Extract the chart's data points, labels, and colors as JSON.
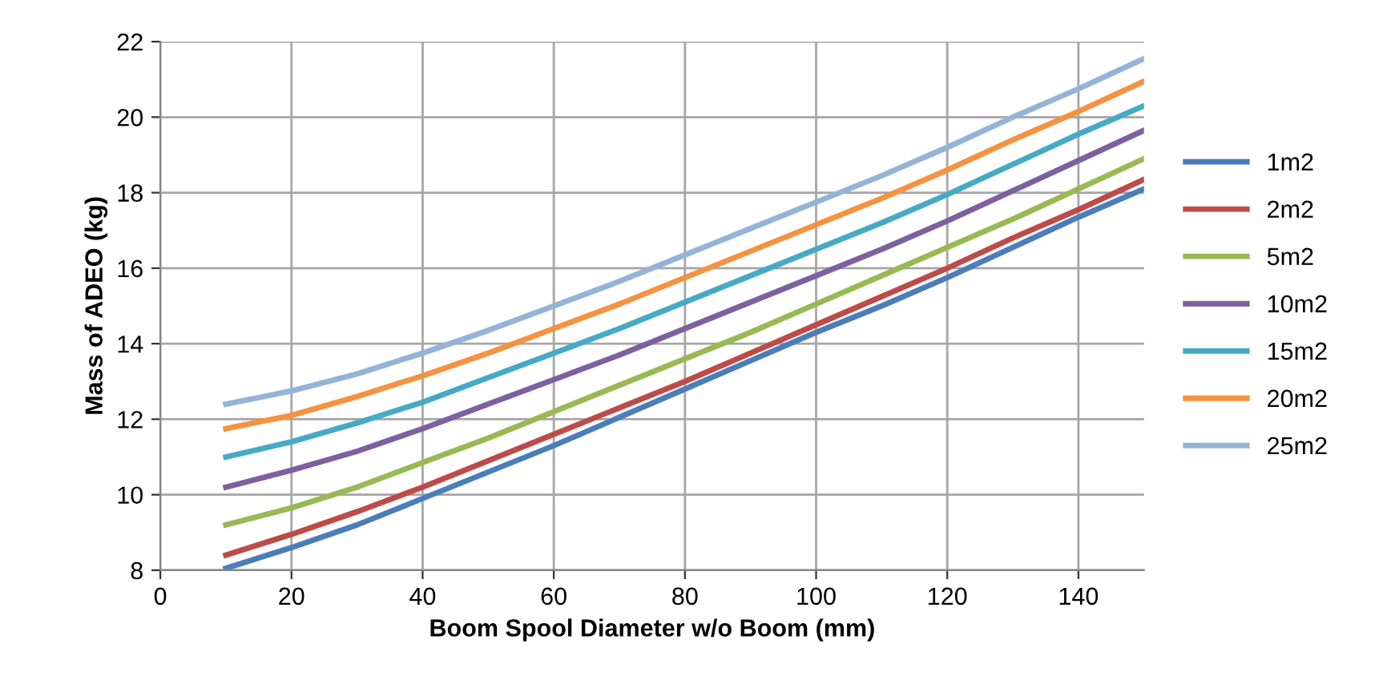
{
  "chart_data": {
    "type": "line",
    "xlabel": "Boom Spool Diameter w/o Boom (mm)",
    "ylabel": "Mass of ADEO (kg)",
    "x": [
      10,
      20,
      30,
      40,
      50,
      60,
      70,
      80,
      90,
      100,
      110,
      120,
      130,
      140,
      150
    ],
    "series": [
      {
        "name": "1m2",
        "color": "#4a7ebb",
        "values": [
          8.05,
          8.6,
          9.2,
          9.9,
          10.6,
          11.3,
          12.05,
          12.8,
          13.55,
          14.3,
          15.0,
          15.75,
          16.55,
          17.35,
          18.1
        ]
      },
      {
        "name": "2m2",
        "color": "#be4b48",
        "values": [
          8.4,
          8.95,
          9.55,
          10.2,
          10.9,
          11.6,
          12.3,
          13.0,
          13.75,
          14.5,
          15.25,
          16.0,
          16.8,
          17.55,
          18.35
        ]
      },
      {
        "name": "5m2",
        "color": "#98b954",
        "values": [
          9.2,
          9.65,
          10.2,
          10.85,
          11.5,
          12.2,
          12.9,
          13.6,
          14.3,
          15.05,
          15.8,
          16.55,
          17.3,
          18.1,
          18.9
        ]
      },
      {
        "name": "10m2",
        "color": "#7d60a0",
        "values": [
          10.2,
          10.65,
          11.15,
          11.75,
          12.4,
          13.05,
          13.7,
          14.4,
          15.1,
          15.8,
          16.5,
          17.25,
          18.05,
          18.85,
          19.65
        ]
      },
      {
        "name": "15m2",
        "color": "#46aac5",
        "values": [
          11.0,
          11.4,
          11.9,
          12.45,
          13.1,
          13.75,
          14.4,
          15.1,
          15.8,
          16.5,
          17.2,
          17.95,
          18.75,
          19.55,
          20.3
        ]
      },
      {
        "name": "20m2",
        "color": "#f69240",
        "values": [
          11.75,
          12.1,
          12.6,
          13.15,
          13.75,
          14.4,
          15.05,
          15.75,
          16.45,
          17.15,
          17.85,
          18.6,
          19.4,
          20.15,
          20.95
        ]
      },
      {
        "name": "25m2",
        "color": "#95b3d7",
        "values": [
          12.4,
          12.75,
          13.2,
          13.75,
          14.35,
          15.0,
          15.65,
          16.35,
          17.05,
          17.75,
          18.45,
          19.2,
          20.0,
          20.75,
          21.55
        ]
      }
    ],
    "xlim": [
      0,
      150
    ],
    "xticks": [
      0,
      20,
      40,
      60,
      80,
      100,
      120,
      140
    ],
    "ylim": [
      8,
      22
    ],
    "yticks": [
      8,
      10,
      12,
      14,
      16,
      18,
      20,
      22
    ],
    "grid": true,
    "legend": "right",
    "marker": "none",
    "line_style": "solid"
  }
}
